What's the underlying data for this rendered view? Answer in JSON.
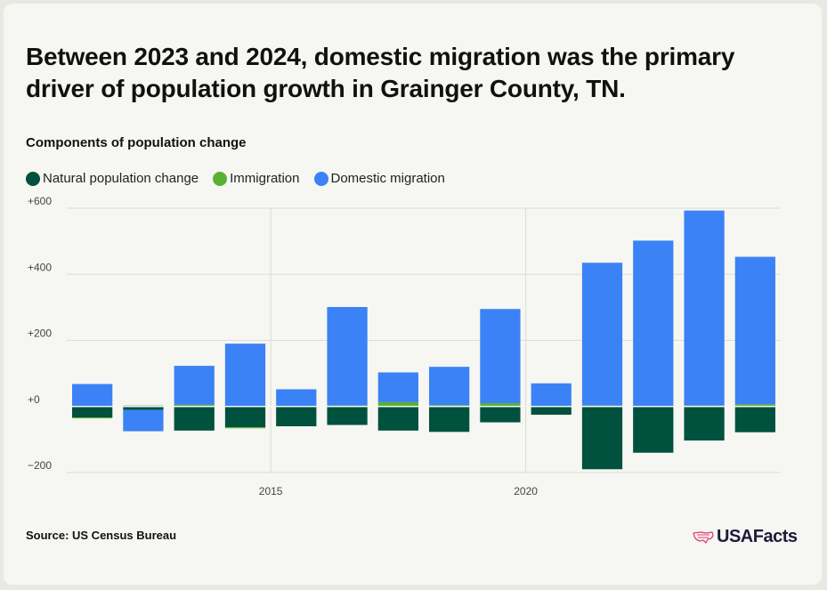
{
  "title": "Between 2023 and 2024, domestic migration was the primary driver of population growth in Grainger County, TN.",
  "subtitle": "Components of population change",
  "source": "Source: US Census Bureau",
  "brand": "USAFacts",
  "legend": [
    {
      "name": "Natural population change",
      "color": "#00513d"
    },
    {
      "name": "Immigration",
      "color": "#5ab032"
    },
    {
      "name": "Domestic migration",
      "color": "#3b82f6"
    }
  ],
  "chart_data": {
    "type": "bar",
    "stacked": true,
    "categories": [
      2011,
      2012,
      2013,
      2014,
      2015,
      2016,
      2017,
      2018,
      2019,
      2020,
      2021,
      2022,
      2023,
      2024
    ],
    "x_tick_labels": [
      {
        "value": 2015,
        "label": "2015"
      },
      {
        "value": 2020,
        "label": "2020"
      }
    ],
    "y_tick_labels": [
      {
        "value": 600,
        "label": "+600"
      },
      {
        "value": 400,
        "label": "+400"
      },
      {
        "value": 200,
        "label": "+200"
      },
      {
        "value": 0,
        "label": "+0"
      },
      {
        "value": -200,
        "label": "−200"
      }
    ],
    "ylim": [
      -200,
      600
    ],
    "series": [
      {
        "name": "Natural population change",
        "color": "#00513d",
        "values": [
          -33,
          -10,
          -73,
          -63,
          -60,
          -56,
          -73,
          -77,
          -48,
          -25,
          -190,
          -140,
          -103,
          -78
        ]
      },
      {
        "name": "Immigration",
        "color": "#5ab032",
        "values": [
          -3,
          3,
          5,
          -3,
          2,
          3,
          13,
          4,
          10,
          2,
          3,
          2,
          3,
          7
        ]
      },
      {
        "name": "Domestic migration",
        "color": "#3b82f6",
        "values": [
          68,
          -65,
          118,
          190,
          50,
          298,
          90,
          116,
          285,
          68,
          432,
          500,
          590,
          446
        ]
      }
    ]
  }
}
